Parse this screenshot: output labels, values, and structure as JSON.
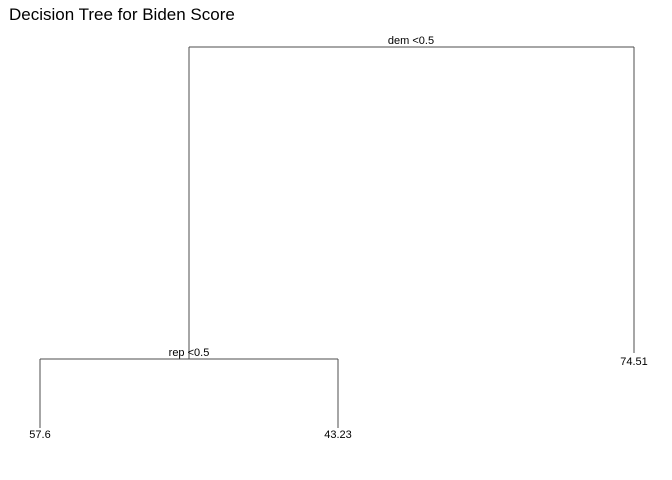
{
  "title": "Decision Tree for Biden Score",
  "tree": {
    "split": "dem <0.5",
    "left": {
      "split": "rep <0.5",
      "left": {
        "leaf": "57.6"
      },
      "right": {
        "leaf": "43.23"
      }
    },
    "right": {
      "leaf": "74.51"
    }
  },
  "colors": {
    "edge": "#4d4d4d",
    "text": "#000000",
    "background": "#ffffff"
  }
}
